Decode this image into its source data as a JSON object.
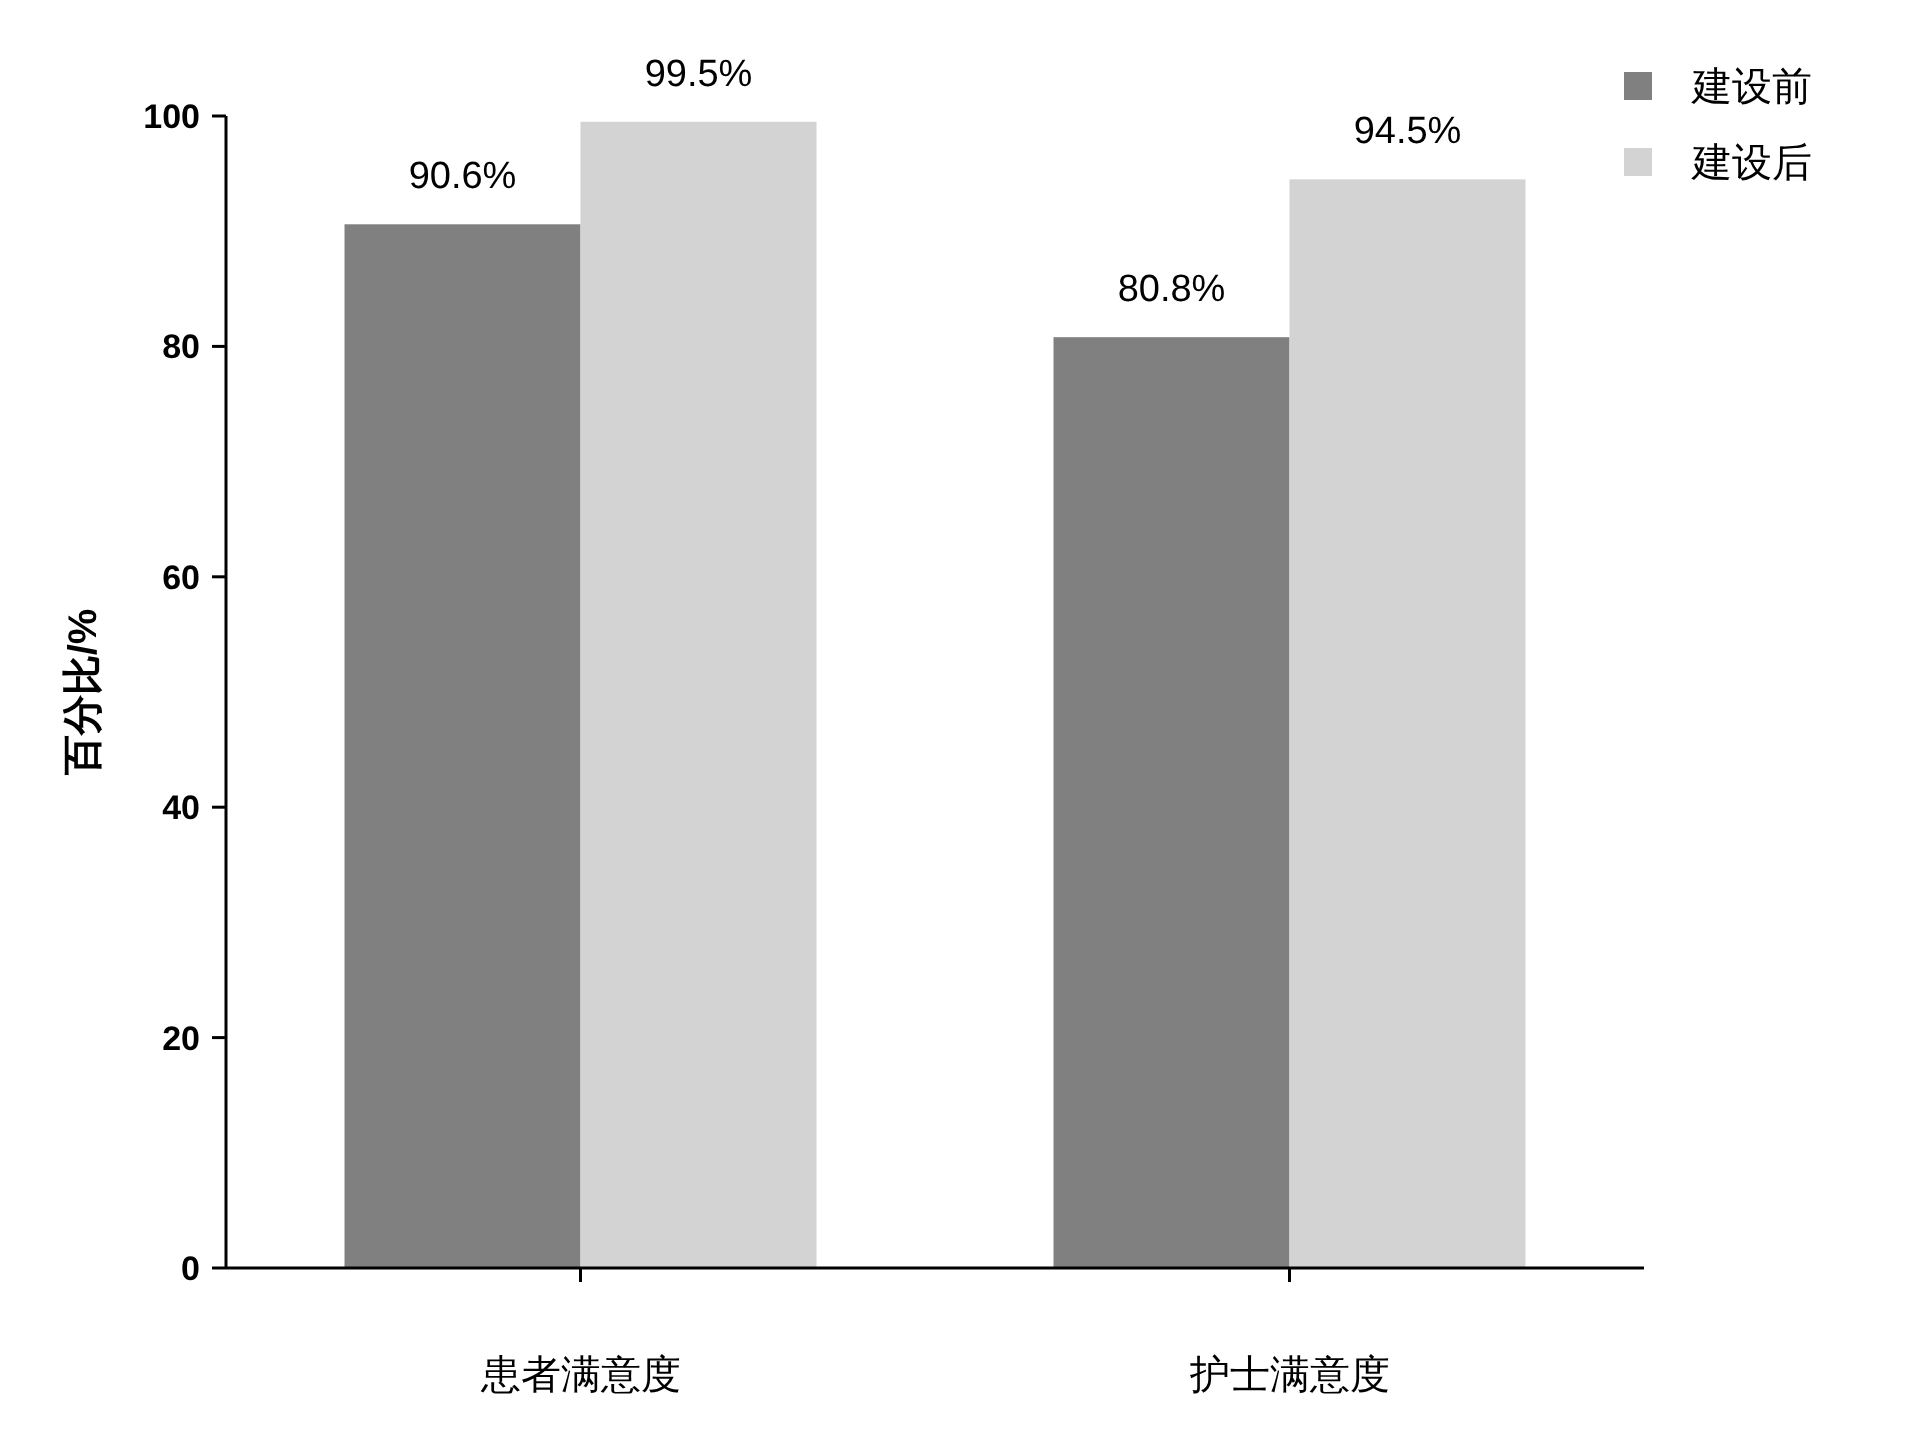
{
  "chart_data": {
    "type": "bar",
    "ylabel": "百分比/%",
    "categories": [
      "患者满意度",
      "护士满意度"
    ],
    "series": [
      {
        "name": "建设前",
        "color": "#808080",
        "values": [
          90.6,
          80.8
        ],
        "value_labels": [
          "90.6%",
          "80.8%"
        ]
      },
      {
        "name": "建设后",
        "color": "#d3d3d3",
        "values": [
          99.5,
          94.5
        ],
        "value_labels": [
          "99.5%",
          "94.5%"
        ]
      }
    ],
    "ylim": [
      0,
      100
    ],
    "yticks": [
      0,
      20,
      40,
      60,
      80,
      100
    ],
    "legend": "top right",
    "grid": false
  }
}
